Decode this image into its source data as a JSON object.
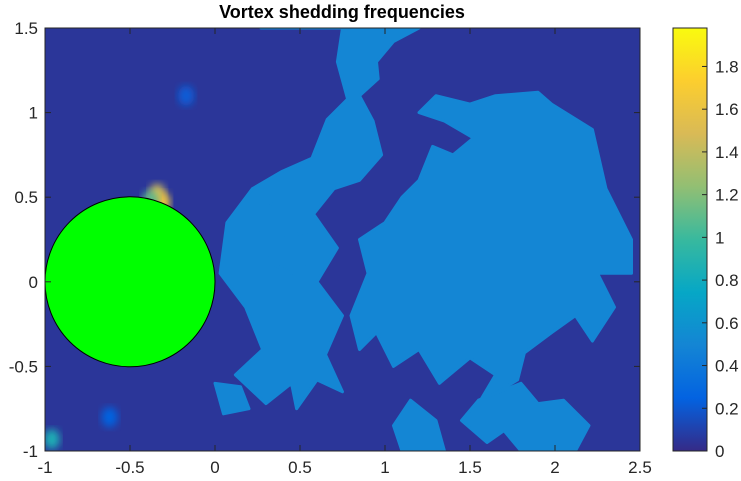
{
  "chart_data": {
    "type": "heatmap",
    "title": "Vortex shedding frequencies",
    "xlabel": "",
    "ylabel": "",
    "xlim": [
      -1,
      2.5
    ],
    "ylim": [
      -1,
      1.5
    ],
    "x_ticks": [
      -1,
      -0.5,
      0,
      0.5,
      1,
      1.5,
      2,
      2.5
    ],
    "x_tick_labels": [
      "-1",
      "-0.5",
      "0",
      "0.5",
      "1",
      "1.5",
      "2",
      "2.5"
    ],
    "y_ticks": [
      -1,
      -0.5,
      0,
      0.5,
      1,
      1.5
    ],
    "y_tick_labels": [
      "-1",
      "-0.5",
      "0",
      "0.5",
      "1",
      "1.5"
    ],
    "grid": false,
    "colormap": "parula",
    "colorbar": {
      "limits": [
        0,
        1.98
      ],
      "ticks": [
        0,
        0.2,
        0.4,
        0.6,
        0.8,
        1,
        1.2,
        1.4,
        1.6,
        1.8
      ],
      "tick_labels": [
        "0",
        "0.2",
        "0.4",
        "0.6",
        "0.8",
        "1",
        "1.2",
        "1.4",
        "1.6",
        "1.8"
      ]
    },
    "background_value": 0.05,
    "patch_value": 0.5,
    "patches": [
      [
        [
          0.27,
          1.5
        ],
        [
          0.75,
          1.5
        ],
        [
          0.72,
          1.3
        ],
        [
          0.78,
          1.08
        ],
        [
          0.66,
          0.96
        ],
        [
          0.57,
          0.73
        ],
        [
          0.39,
          0.65
        ],
        [
          0.22,
          0.55
        ],
        [
          0.07,
          0.35
        ],
        [
          0.03,
          0.05
        ],
        [
          0.18,
          -0.15
        ],
        [
          0.28,
          -0.4
        ],
        [
          0.12,
          -0.55
        ],
        [
          0.3,
          -0.72
        ],
        [
          0.45,
          -0.6
        ],
        [
          0.48,
          -0.75
        ],
        [
          0.6,
          -0.58
        ],
        [
          0.75,
          -0.65
        ],
        [
          0.65,
          -0.43
        ],
        [
          0.75,
          -0.2
        ],
        [
          0.6,
          0.0
        ],
        [
          0.72,
          0.2
        ],
        [
          0.58,
          0.4
        ],
        [
          0.7,
          0.55
        ],
        [
          0.85,
          0.6
        ],
        [
          0.98,
          0.75
        ],
        [
          0.93,
          0.95
        ],
        [
          0.85,
          1.1
        ],
        [
          0.96,
          1.2
        ],
        [
          0.95,
          1.3
        ],
        [
          1.05,
          1.42
        ],
        [
          1.2,
          1.5
        ]
      ],
      [
        [
          1.3,
          1.1
        ],
        [
          1.5,
          1.05
        ],
        [
          1.65,
          1.1
        ],
        [
          1.9,
          1.12
        ],
        [
          1.98,
          1.05
        ],
        [
          2.22,
          0.9
        ],
        [
          2.3,
          0.55
        ],
        [
          2.45,
          0.25
        ],
        [
          2.45,
          0.05
        ],
        [
          2.25,
          0.05
        ],
        [
          2.35,
          -0.15
        ],
        [
          2.22,
          -0.35
        ],
        [
          2.12,
          -0.2
        ],
        [
          1.98,
          -0.3
        ],
        [
          1.82,
          -0.42
        ],
        [
          1.78,
          -0.58
        ],
        [
          1.55,
          -0.72
        ],
        [
          1.65,
          -0.55
        ],
        [
          1.5,
          -0.45
        ],
        [
          1.32,
          -0.6
        ],
        [
          1.2,
          -0.4
        ],
        [
          1.05,
          -0.5
        ],
        [
          0.95,
          -0.3
        ],
        [
          0.85,
          -0.4
        ],
        [
          0.8,
          -0.2
        ],
        [
          0.9,
          0.05
        ],
        [
          0.85,
          0.25
        ],
        [
          1.0,
          0.35
        ],
        [
          1.1,
          0.5
        ],
        [
          1.2,
          0.6
        ],
        [
          1.28,
          0.8
        ],
        [
          1.4,
          0.75
        ],
        [
          1.52,
          0.85
        ],
        [
          1.35,
          0.95
        ],
        [
          1.2,
          1.0
        ]
      ],
      [
        [
          1.55,
          -0.7
        ],
        [
          1.8,
          -0.6
        ],
        [
          1.9,
          -0.72
        ],
        [
          2.05,
          -0.7
        ],
        [
          2.2,
          -0.85
        ],
        [
          2.12,
          -1.0
        ],
        [
          1.8,
          -1.0
        ],
        [
          1.7,
          -0.88
        ],
        [
          1.6,
          -0.95
        ],
        [
          1.45,
          -0.82
        ]
      ],
      [
        [
          1.15,
          -0.7
        ],
        [
          1.3,
          -0.82
        ],
        [
          1.35,
          -1.0
        ],
        [
          1.1,
          -1.0
        ],
        [
          1.05,
          -0.85
        ]
      ],
      [
        [
          0.0,
          -0.6
        ],
        [
          0.15,
          -0.62
        ],
        [
          0.2,
          -0.75
        ],
        [
          0.05,
          -0.78
        ]
      ],
      [
        [
          0.27,
          0.5
        ],
        [
          0.35,
          0.45
        ],
        [
          0.38,
          0.25
        ],
        [
          0.55,
          0.3
        ],
        [
          0.6,
          0.15
        ],
        [
          0.45,
          0.05
        ],
        [
          0.35,
          0.1
        ],
        [
          0.25,
          0.3
        ]
      ]
    ],
    "hotspots": [
      {
        "x": -0.34,
        "y": 0.52,
        "value": 1.45
      },
      {
        "x": -0.31,
        "y": 0.47,
        "value": 1.6
      },
      {
        "x": -0.38,
        "y": 0.48,
        "value": 1.1
      },
      {
        "x": -0.96,
        "y": -0.93,
        "value": 0.85
      },
      {
        "x": -0.62,
        "y": -0.8,
        "value": 0.25
      },
      {
        "x": -0.17,
        "y": 1.1,
        "value": 0.22
      }
    ],
    "obstacle": {
      "shape": "circle",
      "center": [
        -0.5,
        0
      ],
      "radius": 0.5,
      "fill_color": "#00ff00",
      "edge_color": "#000000"
    }
  }
}
